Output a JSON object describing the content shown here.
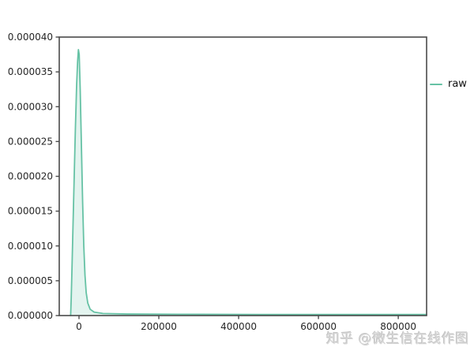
{
  "chart_data": {
    "type": "area",
    "title": "",
    "xlabel": "",
    "ylabel": "",
    "grid": false,
    "xlim": [
      -49500,
      871000
    ],
    "ylim": [
      0,
      4e-05
    ],
    "x_ticks": [
      0,
      200000,
      400000,
      600000,
      800000
    ],
    "x_tick_labels": [
      "0",
      "200000",
      "400000",
      "600000",
      "800000"
    ],
    "y_ticks": [
      0,
      5e-06,
      1e-05,
      1.5e-05,
      2e-05,
      2.5e-05,
      3e-05,
      3.5e-05,
      4e-05
    ],
    "y_tick_labels": [
      "0.000000",
      "0.000005",
      "0.000010",
      "0.000015",
      "0.000020",
      "0.000025",
      "0.000030",
      "0.000035",
      "0.000040"
    ],
    "legend": {
      "position": "outside-right",
      "entries": [
        {
          "label": "raw",
          "color": "#66c2a5"
        }
      ]
    },
    "series": [
      {
        "name": "raw",
        "color": "#66c2a5",
        "fill": "rgba(102,194,165,0.18)",
        "peak": {
          "x": -1500,
          "y": 3.82e-05
        },
        "points": [
          [
            -21000,
            0.0
          ],
          [
            -19500,
            2.5e-06
          ],
          [
            -17500,
            7e-06
          ],
          [
            -15000,
            1.3e-05
          ],
          [
            -12000,
            2e-05
          ],
          [
            -9000,
            2.7e-05
          ],
          [
            -6000,
            3.3e-05
          ],
          [
            -3500,
            3.65e-05
          ],
          [
            -1500,
            3.82e-05
          ],
          [
            500,
            3.75e-05
          ],
          [
            3000,
            3.25e-05
          ],
          [
            6000,
            2.45e-05
          ],
          [
            9000,
            1.65e-05
          ],
          [
            12000,
            1e-05
          ],
          [
            15000,
            5.8e-06
          ],
          [
            18000,
            3.3e-06
          ],
          [
            22000,
            1.8e-06
          ],
          [
            28000,
            9e-07
          ],
          [
            38000,
            5e-07
          ],
          [
            60000,
            3e-07
          ],
          [
            120000,
            2.2e-07
          ],
          [
            250000,
            1.8e-07
          ],
          [
            450000,
            1.6e-07
          ],
          [
            650000,
            1.5e-07
          ],
          [
            871000,
            1.5e-07
          ]
        ]
      }
    ]
  },
  "watermark": {
    "text": "知乎 @微生信在线作图"
  },
  "colors": {
    "background": "#ffffff",
    "spine": "#4a4a4a",
    "tick_label": "#262626",
    "series": "#66c2a5",
    "series_fill": "rgba(102,194,165,0.18)"
  }
}
